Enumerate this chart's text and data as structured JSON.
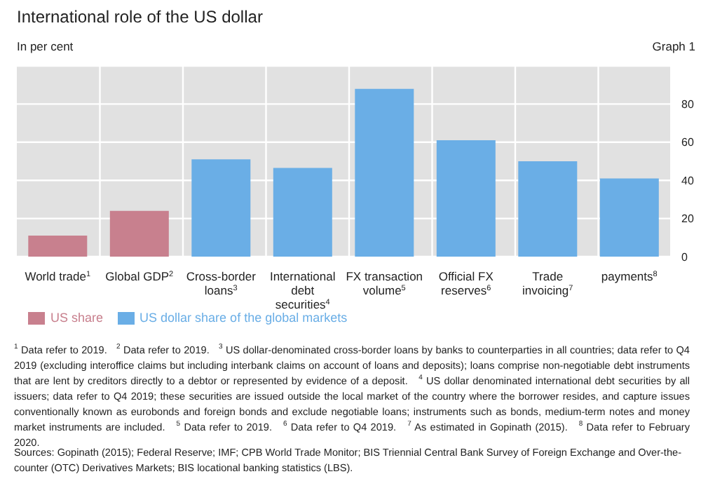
{
  "chart_data": {
    "type": "bar",
    "title": "International role of the US dollar",
    "ylabel": "In per cent",
    "categories": [
      "World trade$^{1}$",
      "Global GDP$^{2}$",
      "Cross-border loans$^{3}$",
      "International debt securities$^{4}$",
      "FX transaction volume$^{5}$",
      "Official FX reserves$^{6}$",
      "Trade invoicing$^{7}$",
      "payments$^{8}$"
    ],
    "series": [
      {
        "name": "US share",
        "color": "#c8808e",
        "values": [
          11,
          24,
          null,
          null,
          null,
          null,
          null,
          null
        ]
      },
      {
        "name": "US dollar share of the global markets",
        "color": "#6aaee6",
        "values": [
          null,
          null,
          51,
          46.5,
          88,
          61,
          50,
          41
        ]
      }
    ],
    "ylim": [
      0,
      100
    ],
    "yticks": [
      0,
      20,
      40,
      60,
      80
    ],
    "grid": true,
    "legend": "bottom left",
    "annotations": [
      "Graph 1",
      "$^{1}$ Data refer to 2019.",
      "$^{2}$ Data refer to 2019.",
      "$^{3}$ US dollar-denominated cross-border loans by banks to counterparties in all countries; data refer to Q4 2019 (excluding interoffice claims but including interbank claims on account of loans and deposits); loans comprise non-negotiable debt instruments that are lent by creditors directly to a debtor or represented by evidence of a deposit.",
      "$^{4}$ US dollar denominated international debt securities by all issuers; data refer to Q4 2019; these securities are issued outside the local market of the country where the borrower resides, and capture issues conventionally known as eurobonds and foreign bonds and exclude negotiable loans; instruments such as bonds, medium-term notes and money market instruments are included.",
      "$^{5}$ Data refer to 2019.",
      "$^{6}$ Data refer to Q4 2019.",
      "$^{7}$ As estimated in Gopinath (2015).",
      "$^{8}$ Data refer to February 2020.",
      "Sources: Gopinath (2015); Federal Reserve; IMF; CPB World Trade Monitor; BIS Triennial Central Bank Survey of Foreign Exchange and Over-the-counter (OTC) Derivatives Markets; BIS locational banking statistics (LBS)."
    ]
  }
}
